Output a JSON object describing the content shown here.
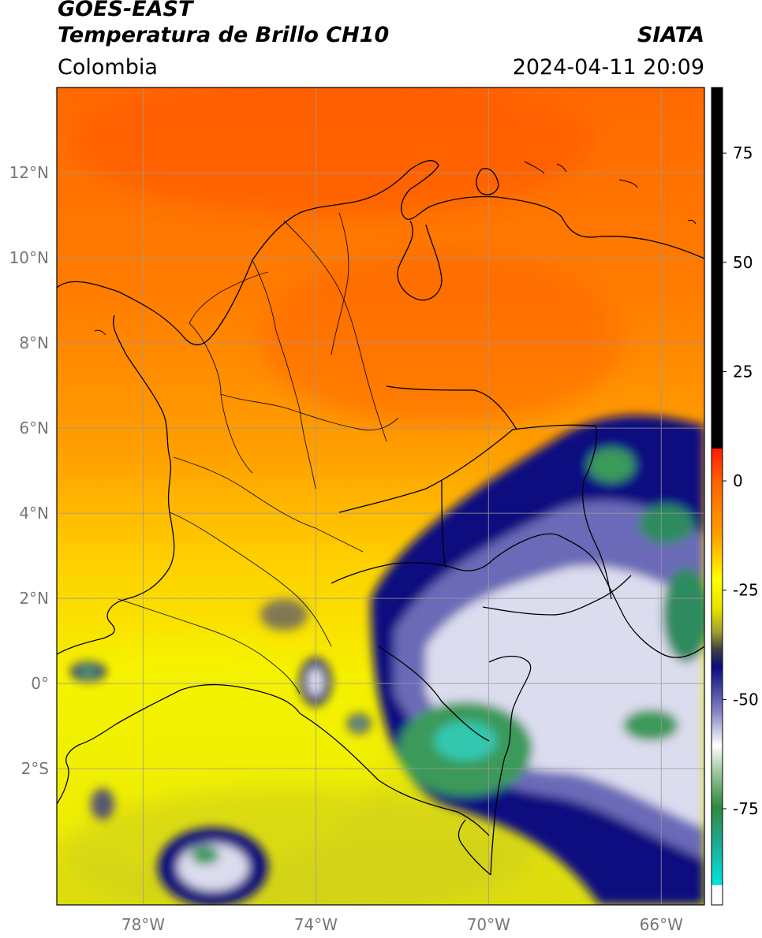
{
  "header": {
    "satellite": "GOES-EAST",
    "product": "Temperatura de Brillo CH10",
    "agency": "SIATA",
    "region": "Colombia",
    "datetime": "2024-04-11 20:09"
  },
  "map": {
    "lon_range": [
      -80,
      -65
    ],
    "lat_range": [
      -5.2,
      14
    ],
    "lat_ticks": [
      {
        "value": 12,
        "label": "12°N"
      },
      {
        "value": 10,
        "label": "10°N"
      },
      {
        "value": 8,
        "label": "8°N"
      },
      {
        "value": 6,
        "label": "6°N"
      },
      {
        "value": 4,
        "label": "4°N"
      },
      {
        "value": 2,
        "label": "2°N"
      },
      {
        "value": 0,
        "label": "0°"
      },
      {
        "value": -2,
        "label": "2°S"
      }
    ],
    "lon_ticks": [
      {
        "value": -78,
        "label": "78°W"
      },
      {
        "value": -74,
        "label": "74°W"
      },
      {
        "value": -70,
        "label": "70°W"
      },
      {
        "value": -66,
        "label": "66°W"
      }
    ],
    "grid": true
  },
  "colorbar": {
    "range": [
      -97,
      90
    ],
    "ticks": [
      {
        "value": 75,
        "label": "75"
      },
      {
        "value": 50,
        "label": "50"
      },
      {
        "value": 25,
        "label": "25"
      },
      {
        "value": 0,
        "label": "0"
      },
      {
        "value": -25,
        "label": "-25"
      },
      {
        "value": -50,
        "label": "-50"
      },
      {
        "value": -75,
        "label": "-75"
      }
    ],
    "colors": {
      "black": "#000000",
      "red": "#ff1a00",
      "orange": "#ff7a00",
      "yellow": "#ffff00",
      "olive": "#8a8a30",
      "navy": "#0a0a80",
      "white": "#ffffff",
      "green": "#2e8b3e",
      "cyan": "#00e5e0"
    }
  }
}
